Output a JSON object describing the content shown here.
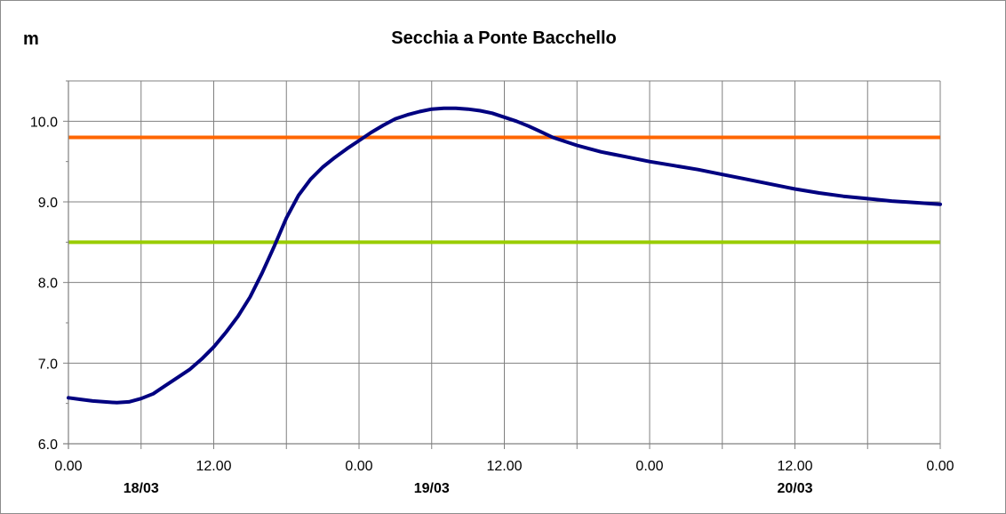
{
  "chart_data": {
    "type": "line",
    "title": "Secchia a Ponte Bacchello",
    "ylabel": "m",
    "xlabel": "",
    "ylim": [
      6.0,
      10.5
    ],
    "xlim": [
      0,
      72
    ],
    "yticks": [
      "6.0",
      "7.0",
      "8.0",
      "9.0",
      "10.0"
    ],
    "ytick_values": [
      6.0,
      7.0,
      8.0,
      9.0,
      10.0
    ],
    "xticks": [
      "0.00",
      "12.00",
      "0.00",
      "12.00",
      "0.00",
      "12.00",
      "0.00"
    ],
    "xtick_values": [
      0,
      12,
      24,
      36,
      48,
      60,
      72
    ],
    "dates": [
      {
        "label": "18/03",
        "x": 6
      },
      {
        "label": "19/03",
        "x": 30
      },
      {
        "label": "20/03",
        "x": 60
      }
    ],
    "grid": true,
    "colors": {
      "series": "#000080",
      "orange_threshold": "#ff6600",
      "green_threshold": "#99cc00",
      "grid": "#808080"
    },
    "thresholds": [
      {
        "value": 9.8,
        "color": "#ff6600"
      },
      {
        "value": 8.5,
        "color": "#99cc00"
      }
    ],
    "series": [
      {
        "x": [
          0,
          1,
          2,
          3,
          4,
          5,
          6,
          7,
          8,
          9,
          10,
          11,
          12,
          13,
          14,
          15,
          16,
          17,
          18,
          19,
          20,
          21,
          22,
          23,
          24,
          25,
          26,
          27,
          28,
          29,
          30,
          31,
          32,
          33,
          34,
          35,
          36,
          37,
          38,
          39,
          40,
          41,
          42,
          43,
          44,
          45,
          46,
          47,
          48,
          50,
          52,
          54,
          56,
          58,
          60,
          62,
          64,
          66,
          68,
          70,
          72
        ],
        "values": [
          6.57,
          6.55,
          6.53,
          6.52,
          6.51,
          6.52,
          6.56,
          6.62,
          6.72,
          6.82,
          6.92,
          7.05,
          7.2,
          7.38,
          7.58,
          7.82,
          8.12,
          8.45,
          8.8,
          9.08,
          9.28,
          9.43,
          9.55,
          9.66,
          9.76,
          9.86,
          9.95,
          10.03,
          10.08,
          10.12,
          10.15,
          10.16,
          10.16,
          10.15,
          10.13,
          10.1,
          10.05,
          10.0,
          9.94,
          9.87,
          9.8,
          9.75,
          9.7,
          9.66,
          9.62,
          9.59,
          9.56,
          9.53,
          9.5,
          9.45,
          9.4,
          9.34,
          9.28,
          9.22,
          9.16,
          9.11,
          9.07,
          9.04,
          9.01,
          8.99,
          8.97
        ]
      }
    ]
  }
}
